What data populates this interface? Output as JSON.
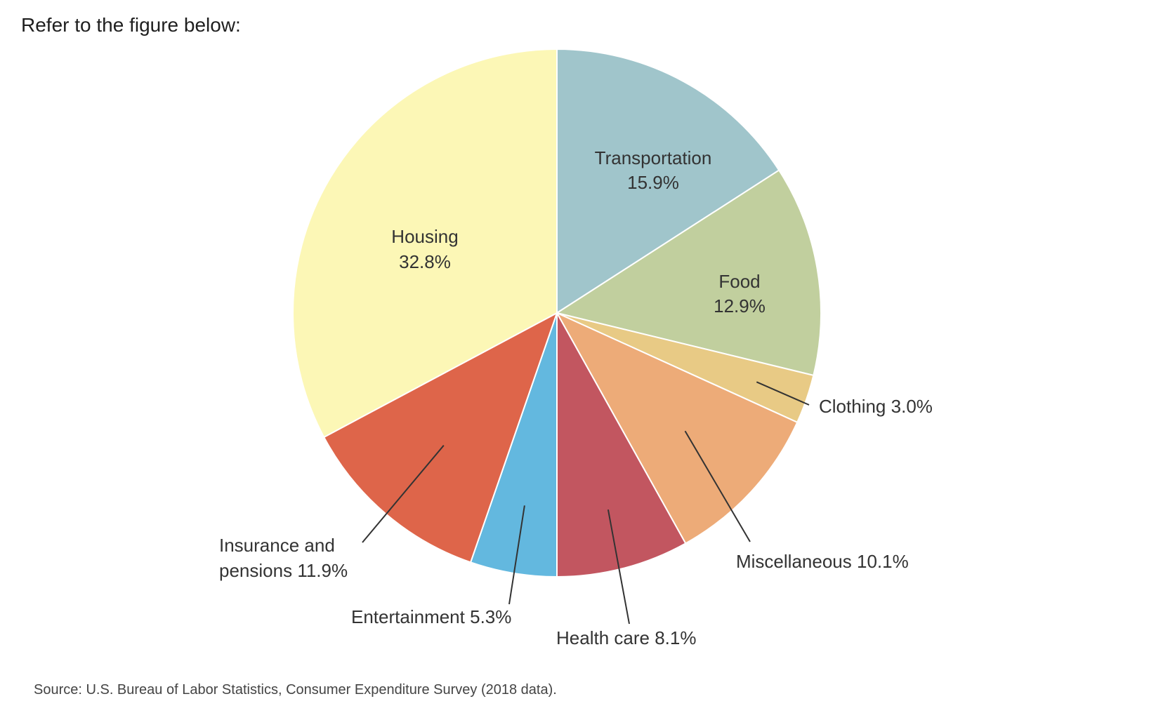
{
  "prompt": "Refer to the figure below:",
  "source": "Source: U.S. Bureau of Labor Statistics, Consumer Expenditure Survey (2018 data).",
  "chart_data": {
    "type": "pie",
    "start": "12 o'clock",
    "direction": "clockwise",
    "slices": [
      {
        "name": "Transportation",
        "value": 15.9,
        "value_label": "15.9%",
        "color": "#a0c5cb"
      },
      {
        "name": "Food",
        "value": 12.9,
        "value_label": "12.9%",
        "color": "#c1cf9e"
      },
      {
        "name": "Clothing",
        "value": 3.0,
        "value_label": "3.0%",
        "color": "#e8ca85"
      },
      {
        "name": "Miscellaneous",
        "value": 10.1,
        "value_label": "10.1%",
        "color": "#edab78"
      },
      {
        "name": "Health care",
        "value": 8.1,
        "value_label": "8.1%",
        "color": "#c25660"
      },
      {
        "name": "Entertainment",
        "value": 5.3,
        "value_label": "5.3%",
        "color": "#63b8df"
      },
      {
        "name": "Insurance and pensions",
        "value": 11.9,
        "value_label": "11.9%",
        "color": "#de654a"
      },
      {
        "name": "Housing",
        "value": 32.8,
        "value_label": "32.8%",
        "color": "#fcf7b6"
      }
    ]
  }
}
